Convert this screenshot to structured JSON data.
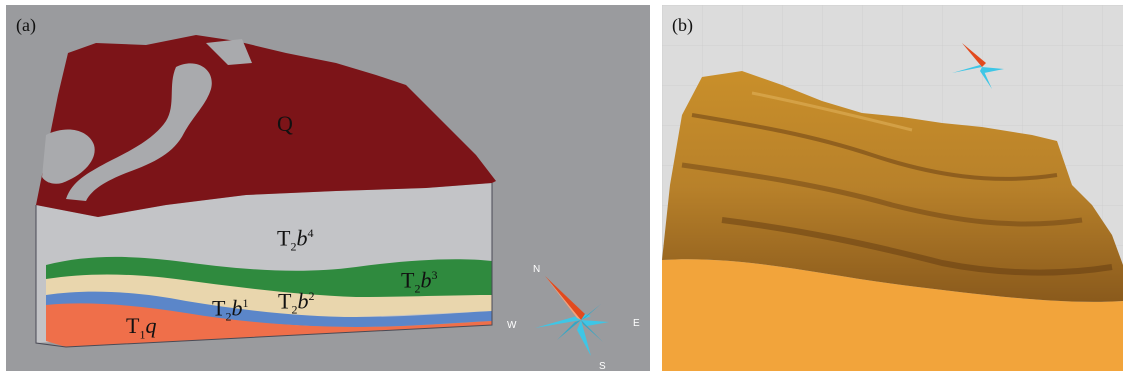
{
  "panel_a": {
    "tag": "(a)",
    "labels": {
      "q": "Q",
      "t2b4_main": "T",
      "t2b4_sub": "2",
      "t2b4_var": "b",
      "t2b4_sup": "4",
      "t2b3_main": "T",
      "t2b3_sub": "2",
      "t2b3_var": "b",
      "t2b3_sup": "3",
      "t2b1_main": "T",
      "t2b1_sub": "2",
      "t2b1_var": "b",
      "t2b1_sup": "1",
      "t2b2_main": "T",
      "t2b2_sub": "2",
      "t2b2_var": "b",
      "t2b2_sup": "2",
      "t1q_main": "T",
      "t1q_sub": "1",
      "t1q_var": "q"
    },
    "compass": {
      "n": "N",
      "s": "S",
      "e": "E",
      "w": "W"
    },
    "colors": {
      "background": "#9a9b9e",
      "q_layer": "#7c1418",
      "gray_outcrop": "#a9aaad",
      "t2b4": "#c3c4c7",
      "t2b3": "#2f8a3e",
      "beige": "#e9d6ad",
      "t2b1_blue": "#5b86c9",
      "t1q": "#ef6f4a"
    }
  },
  "panel_b": {
    "tag": "(b)",
    "colors": {
      "terrain": "#d39a2c",
      "base": "#f2a43b",
      "background": "#dcdcdc"
    }
  }
}
